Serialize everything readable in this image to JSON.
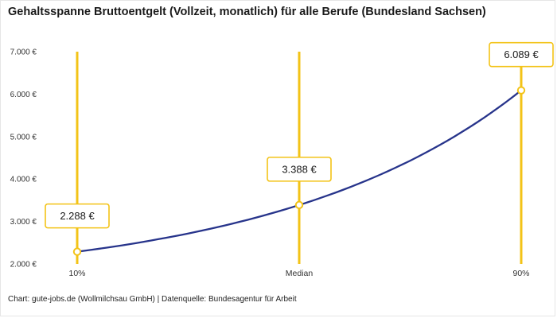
{
  "title": "Gehaltsspanne Bruttoentgelt (Vollzeit, monatlich) für alle Berufe (Bundesland Sachsen)",
  "footer": "Chart: gute-jobs.de (Wollmilchsau GmbH) | Datenquelle: Bundesagentur für Arbeit",
  "chart_data": {
    "type": "line",
    "categories": [
      "10%",
      "Median",
      "90%"
    ],
    "values": [
      2288,
      3388,
      6089
    ],
    "point_labels": [
      "2.288 €",
      "3.388 €",
      "6.089 €"
    ],
    "y_ticks": [
      2000,
      3000,
      4000,
      5000,
      6000,
      7000
    ],
    "y_tick_labels": [
      "2.000 €",
      "3.000 €",
      "4.000 €",
      "5.000 €",
      "6.000 €",
      "7.000 €"
    ],
    "ylim": [
      2000,
      7000
    ],
    "grid": false,
    "legend": "none",
    "colors": {
      "line": "#27348b",
      "accent": "#f3c317",
      "annotation_bg": "#ffffff",
      "annotation_text": "#1a1a1a",
      "axis_text": "#333333"
    }
  }
}
